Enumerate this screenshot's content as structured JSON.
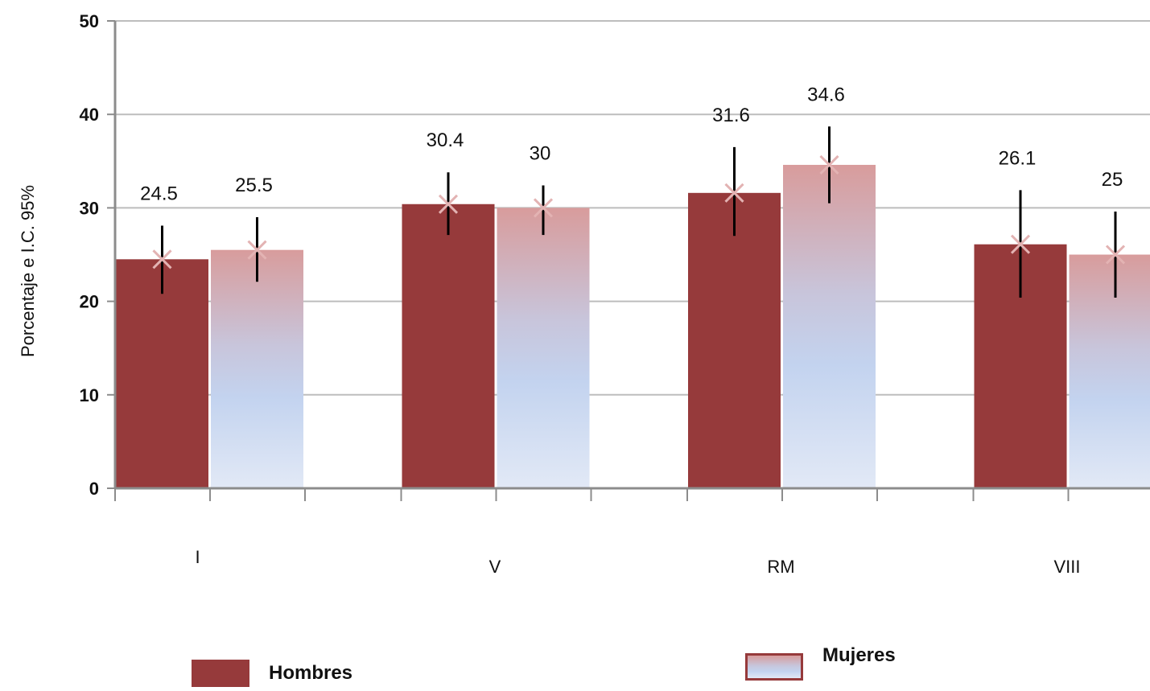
{
  "chart_data": {
    "type": "bar",
    "categories": [
      "I",
      "V",
      "RM",
      "VIII"
    ],
    "ylabel": "Porcentaje e I.C. 95%",
    "ylim": [
      0,
      50
    ],
    "yticks": [
      0,
      10,
      20,
      30,
      40,
      50
    ],
    "grid": true,
    "legend_position": "bottom",
    "series": [
      {
        "name": "Hombres",
        "values": [
          24.5,
          30.4,
          31.6,
          26.1
        ],
        "ci_low": [
          20.8,
          27.1,
          27.0,
          20.4
        ],
        "ci_high": [
          28.1,
          33.8,
          36.5,
          31.9
        ],
        "color": "#963a3b"
      },
      {
        "name": "Mujeres",
        "values": [
          25.5,
          30,
          34.6,
          25
        ],
        "ci_low": [
          22.1,
          27.1,
          30.5,
          20.4
        ],
        "ci_high": [
          29.0,
          32.4,
          38.7,
          29.6
        ],
        "color": "gradient"
      }
    ],
    "value_labels": [
      "24.5",
      "25.5",
      "30.4",
      "30",
      "31.6",
      "34.6",
      "26.1",
      "25"
    ]
  },
  "colors": {
    "hombres": "#963a3b",
    "mujeres_top": "#d89c9c",
    "mujeres_mid": "#c3d3ef",
    "mujeres_bottom": "#e2e9f6",
    "axis": "#8c8c8c",
    "grid": "#bdbdbd",
    "marker": "#e3b3b3",
    "errorbar": "#000000"
  },
  "legend": {
    "hombres": "Hombres",
    "mujeres": "Mujeres"
  }
}
